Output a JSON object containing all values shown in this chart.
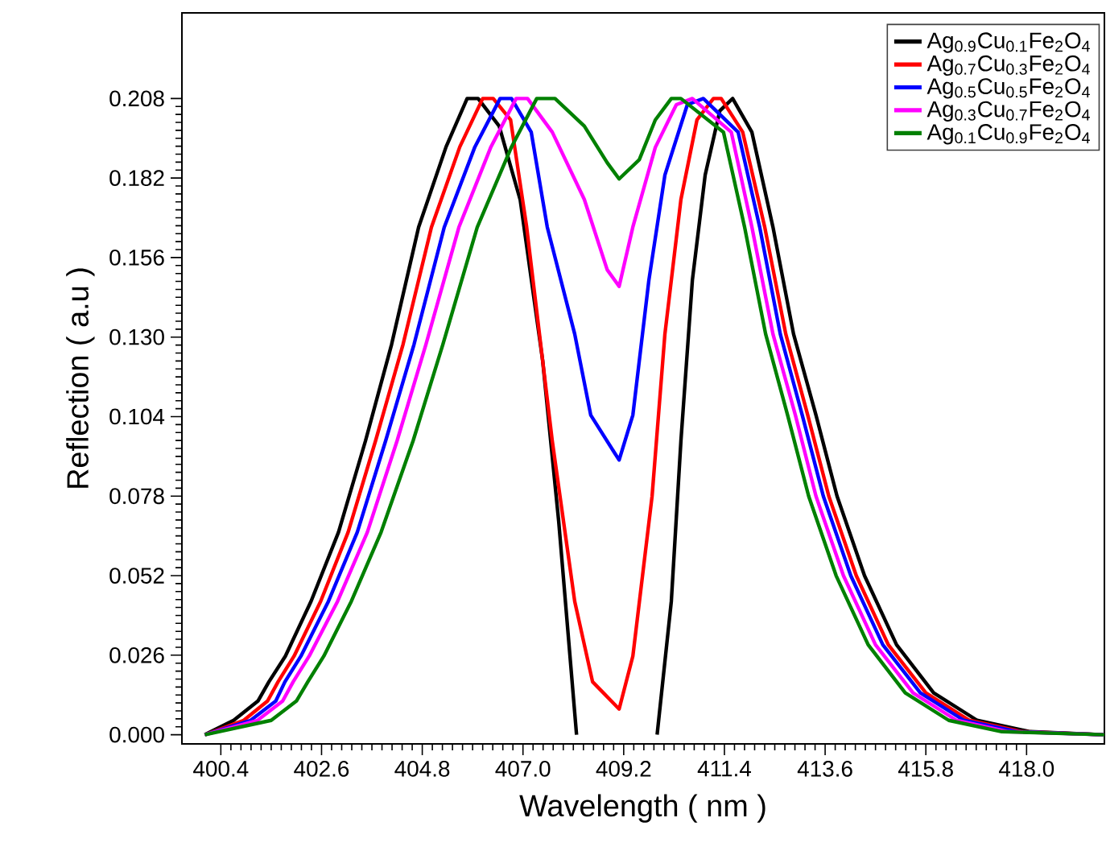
{
  "chart_data": {
    "type": "line",
    "xlabel": "Wavelength ( nm )",
    "ylabel": "Reflection ( a.u )",
    "xlim": [
      399.55,
      419.7
    ],
    "ylim": [
      -0.003,
      0.236
    ],
    "xticks": [
      {
        "value": 400.4,
        "label": "400.4"
      },
      {
        "value": 402.6,
        "label": "402.6"
      },
      {
        "value": 404.8,
        "label": "404.8"
      },
      {
        "value": 407.0,
        "label": "407.0"
      },
      {
        "value": 409.2,
        "label": "409.2"
      },
      {
        "value": 411.4,
        "label": "411.4"
      },
      {
        "value": 413.6,
        "label": "413.6"
      },
      {
        "value": 415.8,
        "label": "415.8"
      },
      {
        "value": 418.0,
        "label": "418.0"
      }
    ],
    "yticks": [
      {
        "value": 0,
        "label": "0.000"
      },
      {
        "value": 0.026,
        "label": "0.026"
      },
      {
        "value": 0.052,
        "label": "0.052"
      },
      {
        "value": 0.078,
        "label": "0.078"
      },
      {
        "value": 0.104,
        "label": "0.104"
      },
      {
        "value": 0.13,
        "label": "0.130"
      },
      {
        "value": 0.156,
        "label": "0.156"
      },
      {
        "value": 0.182,
        "label": "0.182"
      },
      {
        "value": 0.208,
        "label": "0.208"
      }
    ],
    "legend": "top right",
    "grid": false,
    "marker": "none",
    "line_style": "solid",
    "series": [
      {
        "name": "Ag$_{0.9}$Cu$_{0.1}$Fe$_{2}$O$_{4}$",
        "color": "#000000",
        "x": [
          400.05,
          400.68,
          401.21,
          401.45,
          401.81,
          402.37,
          402.97,
          403.56,
          404.13,
          404.72,
          405.32,
          405.78,
          406.02,
          406.48,
          406.94,
          407.43,
          407.78,
          408.17,
          409.05,
          409.93,
          410.24,
          410.45,
          410.7,
          410.98,
          411.3,
          411.58,
          412.0,
          412.46,
          412.91,
          413.4,
          413.86,
          414.46,
          415.16,
          415.97,
          416.92,
          418.08,
          419.7
        ],
        "values": [
          0.0,
          0.0047,
          0.011,
          0.0173,
          0.0257,
          0.0436,
          0.0662,
          0.0961,
          0.1276,
          0.1659,
          0.1922,
          0.208,
          0.208,
          0.199,
          0.1748,
          0.1223,
          0.0698,
          0.0,
          null,
          0.0,
          0.0436,
          0.0961,
          0.1486,
          0.183,
          0.204,
          0.208,
          0.197,
          0.166,
          0.131,
          0.1045,
          0.078,
          0.052,
          0.0294,
          0.0137,
          0.0047,
          0.001,
          0.0
        ]
      },
      {
        "name": "Ag$_{0.7}$Cu$_{0.3}$Fe$_{2}$O$_{4}$",
        "color": "#ff0000",
        "x": [
          400.05,
          400.9,
          401.42,
          401.65,
          402.0,
          402.58,
          403.18,
          403.78,
          404.38,
          405.0,
          405.62,
          406.12,
          406.35,
          406.73,
          407.08,
          407.64,
          408.13,
          408.52,
          409.1,
          409.4,
          409.82,
          410.1,
          410.45,
          410.8,
          411.16,
          411.33,
          411.8,
          412.28,
          412.74,
          413.22,
          413.68,
          414.28,
          414.98,
          415.8,
          416.75,
          417.9,
          419.7
        ],
        "values": [
          0.0,
          0.0047,
          0.011,
          0.0173,
          0.0257,
          0.0436,
          0.0662,
          0.0961,
          0.1276,
          0.1659,
          0.1922,
          0.208,
          0.208,
          0.201,
          0.166,
          0.096,
          0.0436,
          0.0173,
          0.0084,
          0.0257,
          0.078,
          0.131,
          0.175,
          0.201,
          0.208,
          0.208,
          0.197,
          0.166,
          0.131,
          0.1045,
          0.078,
          0.052,
          0.0294,
          0.0137,
          0.0047,
          0.001,
          0.0
        ]
      },
      {
        "name": "Ag$_{0.5}$Cu$_{0.5}$Fe$_{2}$O$_{4}$",
        "color": "#0000ff",
        "x": [
          400.05,
          401.05,
          401.6,
          401.8,
          402.15,
          402.75,
          403.38,
          404.0,
          404.62,
          405.28,
          405.95,
          406.5,
          406.75,
          407.18,
          407.53,
          408.13,
          408.48,
          409.1,
          409.4,
          409.75,
          410.1,
          410.59,
          410.94,
          411.7,
          412.17,
          412.62,
          413.1,
          413.56,
          414.16,
          414.86,
          415.68,
          416.63,
          417.8,
          419.7
        ],
        "values": [
          0.0,
          0.0047,
          0.011,
          0.0173,
          0.0257,
          0.0436,
          0.0662,
          0.0961,
          0.1276,
          0.1659,
          0.1922,
          0.208,
          0.208,
          0.197,
          0.166,
          0.131,
          0.1045,
          0.0898,
          0.1045,
          0.1486,
          0.183,
          0.206,
          0.208,
          0.197,
          0.166,
          0.131,
          0.1045,
          0.078,
          0.052,
          0.0294,
          0.0137,
          0.0047,
          0.001,
          0.0
        ]
      },
      {
        "name": "Ag$_{0.3}$Cu$_{0.7}$Fe$_{2}$O$_{4}$",
        "color": "#ff00ff",
        "x": [
          400.05,
          401.2,
          401.75,
          401.98,
          402.33,
          402.95,
          403.6,
          404.25,
          404.88,
          405.6,
          406.3,
          406.85,
          407.1,
          407.64,
          408.34,
          408.84,
          409.1,
          409.4,
          409.89,
          410.35,
          410.7,
          411.55,
          412.0,
          412.46,
          412.95,
          413.4,
          414.0,
          414.7,
          415.52,
          416.47,
          417.6,
          419.7
        ],
        "values": [
          0.0,
          0.0047,
          0.011,
          0.0173,
          0.0257,
          0.0436,
          0.0662,
          0.0961,
          0.1276,
          0.1659,
          0.1922,
          0.208,
          0.208,
          0.197,
          0.175,
          0.152,
          0.1466,
          0.166,
          0.192,
          0.206,
          0.208,
          0.197,
          0.166,
          0.131,
          0.1045,
          0.078,
          0.052,
          0.0294,
          0.0137,
          0.0047,
          0.001,
          0.0
        ]
      },
      {
        "name": "Ag$_{0.1}$Cu$_{0.9}$Fe$_{2}$O$_{4}$",
        "color": "#008000",
        "x": [
          400.05,
          401.5,
          402.05,
          402.3,
          402.65,
          403.25,
          403.9,
          404.6,
          405.25,
          406.0,
          406.75,
          407.3,
          407.7,
          408.34,
          408.84,
          409.1,
          409.54,
          409.89,
          410.24,
          410.45,
          411.38,
          411.84,
          412.3,
          412.78,
          413.24,
          413.84,
          414.54,
          415.35,
          416.3,
          417.46,
          419.7
        ],
        "values": [
          0.0,
          0.0047,
          0.011,
          0.0173,
          0.0257,
          0.0436,
          0.0662,
          0.0961,
          0.1276,
          0.1659,
          0.1922,
          0.208,
          0.208,
          0.199,
          0.187,
          0.1817,
          0.188,
          0.201,
          0.208,
          0.208,
          0.197,
          0.166,
          0.131,
          0.1045,
          0.078,
          0.052,
          0.0294,
          0.0137,
          0.0047,
          0.001,
          0.0
        ]
      }
    ]
  }
}
